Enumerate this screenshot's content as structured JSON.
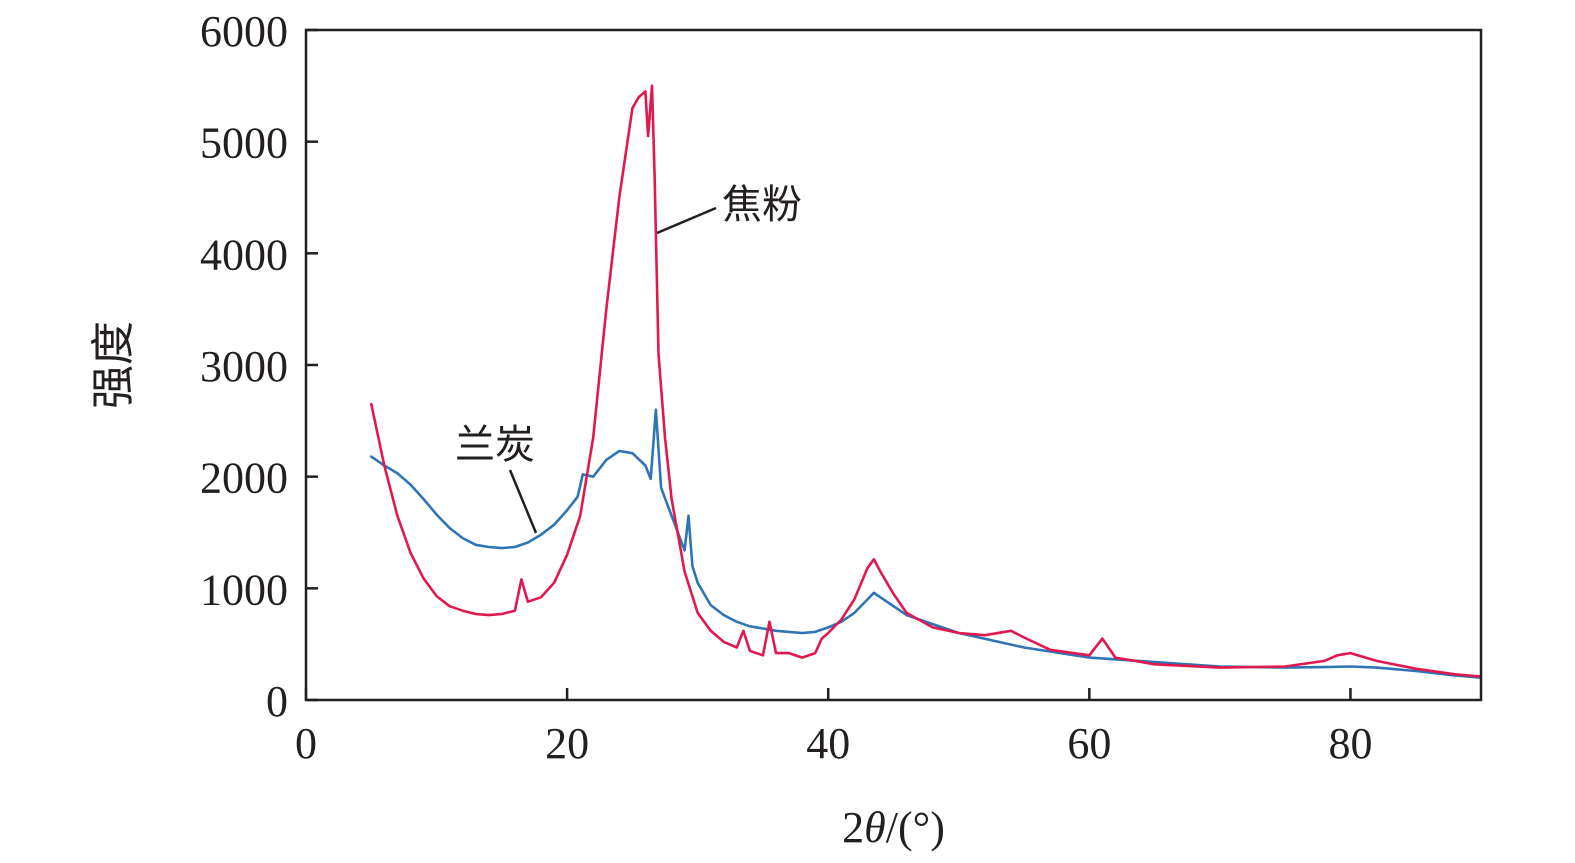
{
  "chart_data": {
    "type": "line",
    "xlabel": "2θ/(°)",
    "ylabel": "强度",
    "xlim": [
      0,
      90
    ],
    "ylim": [
      0,
      6000
    ],
    "xticks": [
      0,
      20,
      40,
      60,
      80
    ],
    "yticks": [
      0,
      1000,
      2000,
      3000,
      4000,
      5000,
      6000
    ],
    "grid": false,
    "legend": "none",
    "colors": {
      "兰炭": "#2e75b6",
      "焦粉": "#e0194e"
    },
    "series": [
      {
        "name": "兰炭",
        "x": [
          5,
          6,
          7,
          8,
          9,
          10,
          11,
          12,
          13,
          14,
          15,
          16,
          17,
          18,
          19,
          20,
          20.8,
          21.2,
          22,
          23,
          24,
          25,
          26,
          26.4,
          26.8,
          27.2,
          28,
          29,
          29.3,
          29.6,
          30,
          31,
          32,
          33,
          34,
          35,
          36,
          37,
          38,
          39,
          40,
          41,
          42,
          43,
          43.5,
          44,
          45,
          46,
          48,
          50,
          55,
          60,
          65,
          70,
          75,
          78,
          80,
          82,
          85,
          88,
          90
        ],
        "y": [
          2180,
          2100,
          2030,
          1930,
          1800,
          1660,
          1540,
          1450,
          1390,
          1370,
          1360,
          1370,
          1410,
          1480,
          1570,
          1700,
          1820,
          2020,
          2000,
          2150,
          2230,
          2210,
          2100,
          1980,
          2600,
          1900,
          1650,
          1340,
          1650,
          1200,
          1050,
          850,
          760,
          700,
          660,
          640,
          620,
          610,
          600,
          610,
          650,
          700,
          780,
          900,
          960,
          920,
          840,
          760,
          680,
          600,
          470,
          380,
          340,
          300,
          290,
          295,
          300,
          290,
          260,
          220,
          200
        ]
      },
      {
        "name": "焦粉",
        "x": [
          5,
          6,
          7,
          8,
          9,
          10,
          11,
          12,
          13,
          14,
          15,
          16,
          16.5,
          17,
          18,
          19,
          20,
          21,
          22,
          23,
          24,
          25,
          25.5,
          26,
          26.2,
          26.5,
          26.7,
          27,
          27.5,
          28,
          29,
          30,
          31,
          32,
          33,
          33.5,
          34,
          35,
          35.5,
          36,
          37,
          38,
          39,
          39.5,
          40,
          41,
          42,
          43,
          43.5,
          44,
          45,
          46,
          48,
          50,
          52,
          54,
          55,
          57,
          60,
          61,
          62,
          65,
          70,
          75,
          78,
          79,
          80,
          82,
          85,
          88,
          90
        ],
        "y": [
          2650,
          2100,
          1650,
          1320,
          1090,
          930,
          840,
          800,
          770,
          760,
          770,
          800,
          1080,
          880,
          920,
          1050,
          1300,
          1650,
          2350,
          3500,
          4500,
          5300,
          5400,
          5450,
          5050,
          5500,
          4700,
          3100,
          2350,
          1800,
          1150,
          780,
          620,
          520,
          470,
          620,
          440,
          400,
          700,
          420,
          420,
          380,
          420,
          550,
          600,
          720,
          900,
          1180,
          1260,
          1150,
          950,
          780,
          650,
          600,
          580,
          620,
          560,
          450,
          400,
          550,
          380,
          320,
          290,
          300,
          350,
          400,
          420,
          350,
          280,
          230,
          210
        ]
      }
    ],
    "annotations": [
      {
        "text": "兰炭",
        "target_series": "兰炭"
      },
      {
        "text": "焦粉",
        "target_series": "焦粉"
      }
    ]
  }
}
